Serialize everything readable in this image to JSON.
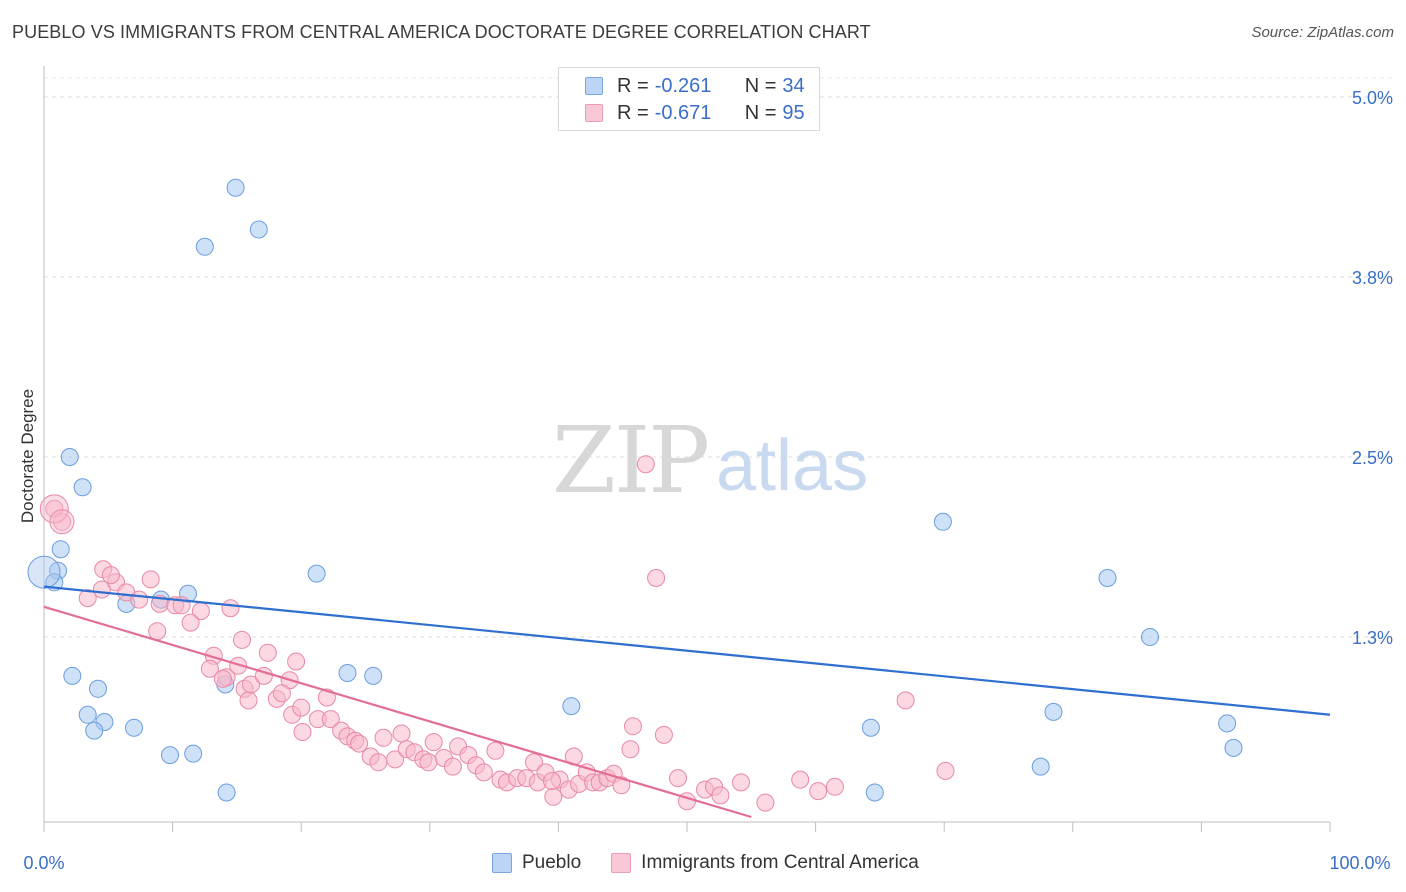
{
  "header": {
    "title": "PUEBLO VS IMMIGRANTS FROM CENTRAL AMERICA DOCTORATE DEGREE CORRELATION CHART",
    "source": "Source: ZipAtlas.com"
  },
  "watermark": {
    "zip": "ZIP",
    "atlas": "atlas"
  },
  "legend": {
    "r_label": "R =",
    "n_label": "N =",
    "series": [
      {
        "r": "-0.261",
        "n": "34",
        "color": "#a8c8f0",
        "stroke": "#6a9ee0"
      },
      {
        "r": "-0.671",
        "n": "95",
        "color": "#f7b8cb",
        "stroke": "#e889a6"
      }
    ]
  },
  "bottom_legend": [
    "Pueblo",
    "Immigrants from Central America"
  ],
  "chart_data": {
    "type": "scatter",
    "title": "PUEBLO VS IMMIGRANTS FROM CENTRAL AMERICA DOCTORATE DEGREE CORRELATION CHART",
    "xlabel": "",
    "ylabel": "Doctorate Degree",
    "xlim": [
      0,
      100
    ],
    "ylim": [
      0,
      5.2
    ],
    "x_ticks": [
      "0.0%",
      "100.0%"
    ],
    "y_ticks": [
      {
        "value": 1.25,
        "label": "1.3%"
      },
      {
        "value": 2.5,
        "label": "2.5%"
      },
      {
        "value": 3.75,
        "label": "3.8%"
      },
      {
        "value": 5.0,
        "label": "5.0%"
      }
    ],
    "grid": true,
    "series": [
      {
        "name": "Pueblo",
        "color": "#a8c8f0",
        "stroke": "#6a9ee0",
        "line_color": "#2f6fcf",
        "trend": [
          [
            0,
            1.6
          ],
          [
            100,
            0.71
          ]
        ],
        "points": [
          [
            14.9,
            4.37
          ],
          [
            16.7,
            4.08
          ],
          [
            12.5,
            3.96
          ],
          [
            2.0,
            2.5
          ],
          [
            3.0,
            2.29
          ],
          [
            1.3,
            1.86
          ],
          [
            1.1,
            1.71
          ],
          [
            0.8,
            1.63
          ],
          [
            21.2,
            1.69
          ],
          [
            11.2,
            1.55
          ],
          [
            9.1,
            1.51
          ],
          [
            6.4,
            1.48
          ],
          [
            2.2,
            0.98
          ],
          [
            4.2,
            0.89
          ],
          [
            23.6,
            1.0
          ],
          [
            25.6,
            0.98
          ],
          [
            14.1,
            0.92
          ],
          [
            3.4,
            0.71
          ],
          [
            4.7,
            0.66
          ],
          [
            3.9,
            0.6
          ],
          [
            7.0,
            0.62
          ],
          [
            9.8,
            0.43
          ],
          [
            11.6,
            0.44
          ],
          [
            14.2,
            0.17
          ],
          [
            41.0,
            0.77
          ],
          [
            64.3,
            0.62
          ],
          [
            69.9,
            2.05
          ],
          [
            78.5,
            0.73
          ],
          [
            82.7,
            1.66
          ],
          [
            86.0,
            1.25
          ],
          [
            92.0,
            0.65
          ],
          [
            92.5,
            0.48
          ],
          [
            77.5,
            0.35
          ],
          [
            64.6,
            0.17
          ]
        ]
      },
      {
        "name": "Immigrants from Central America",
        "color": "#f7b8cb",
        "stroke": "#e889a6",
        "line_color": "#e26e96",
        "trend": [
          [
            0,
            1.46
          ],
          [
            55,
            0
          ]
        ],
        "points": [
          [
            0.8,
            2.14
          ],
          [
            1.4,
            2.05
          ],
          [
            4.5,
            1.58
          ],
          [
            5.6,
            1.63
          ],
          [
            4.6,
            1.72
          ],
          [
            3.4,
            1.52
          ],
          [
            5.2,
            1.68
          ],
          [
            8.3,
            1.65
          ],
          [
            6.4,
            1.56
          ],
          [
            9.0,
            1.48
          ],
          [
            8.8,
            1.29
          ],
          [
            7.4,
            1.51
          ],
          [
            10.2,
            1.47
          ],
          [
            12.2,
            1.43
          ],
          [
            11.4,
            1.35
          ],
          [
            10.7,
            1.47
          ],
          [
            13.2,
            1.12
          ],
          [
            15.4,
            1.23
          ],
          [
            14.2,
            0.97
          ],
          [
            12.9,
            1.03
          ],
          [
            15.1,
            1.05
          ],
          [
            14.5,
            1.45
          ],
          [
            13.9,
            0.96
          ],
          [
            15.6,
            0.89
          ],
          [
            15.9,
            0.81
          ],
          [
            16.1,
            0.92
          ],
          [
            18.1,
            0.82
          ],
          [
            17.4,
            1.14
          ],
          [
            19.1,
            0.95
          ],
          [
            18.5,
            0.86
          ],
          [
            17.1,
            0.98
          ],
          [
            19.3,
            0.71
          ],
          [
            20.0,
            0.76
          ],
          [
            20.1,
            0.59
          ],
          [
            19.6,
            1.08
          ],
          [
            21.3,
            0.68
          ],
          [
            22.0,
            0.83
          ],
          [
            22.3,
            0.68
          ],
          [
            23.1,
            0.6
          ],
          [
            23.6,
            0.56
          ],
          [
            24.2,
            0.53
          ],
          [
            24.5,
            0.51
          ],
          [
            25.4,
            0.42
          ],
          [
            26.0,
            0.38
          ],
          [
            26.4,
            0.55
          ],
          [
            27.3,
            0.4
          ],
          [
            27.8,
            0.58
          ],
          [
            28.2,
            0.47
          ],
          [
            28.8,
            0.45
          ],
          [
            29.5,
            0.4
          ],
          [
            29.9,
            0.38
          ],
          [
            30.3,
            0.52
          ],
          [
            31.1,
            0.41
          ],
          [
            31.8,
            0.35
          ],
          [
            32.2,
            0.49
          ],
          [
            33.0,
            0.43
          ],
          [
            33.6,
            0.36
          ],
          [
            34.2,
            0.31
          ],
          [
            35.1,
            0.46
          ],
          [
            35.5,
            0.26
          ],
          [
            36.0,
            0.24
          ],
          [
            36.8,
            0.27
          ],
          [
            37.5,
            0.27
          ],
          [
            38.1,
            0.38
          ],
          [
            38.4,
            0.24
          ],
          [
            39.0,
            0.31
          ],
          [
            39.6,
            0.14
          ],
          [
            40.1,
            0.26
          ],
          [
            40.8,
            0.19
          ],
          [
            41.6,
            0.23
          ],
          [
            42.2,
            0.31
          ],
          [
            41.2,
            0.42
          ],
          [
            39.5,
            0.25
          ],
          [
            42.7,
            0.24
          ],
          [
            43.2,
            0.24
          ],
          [
            43.8,
            0.27
          ],
          [
            44.3,
            0.3
          ],
          [
            44.9,
            0.22
          ],
          [
            45.6,
            0.47
          ],
          [
            45.8,
            0.63
          ],
          [
            48.2,
            0.57
          ],
          [
            49.3,
            0.27
          ],
          [
            50.0,
            0.11
          ],
          [
            51.4,
            0.19
          ],
          [
            52.1,
            0.21
          ],
          [
            52.6,
            0.15
          ],
          [
            54.2,
            0.24
          ],
          [
            56.1,
            0.1
          ],
          [
            58.8,
            0.26
          ],
          [
            60.2,
            0.18
          ],
          [
            61.5,
            0.21
          ],
          [
            67.0,
            0.81
          ],
          [
            70.1,
            0.32
          ],
          [
            46.8,
            2.45
          ],
          [
            47.6,
            1.66
          ]
        ]
      }
    ]
  }
}
